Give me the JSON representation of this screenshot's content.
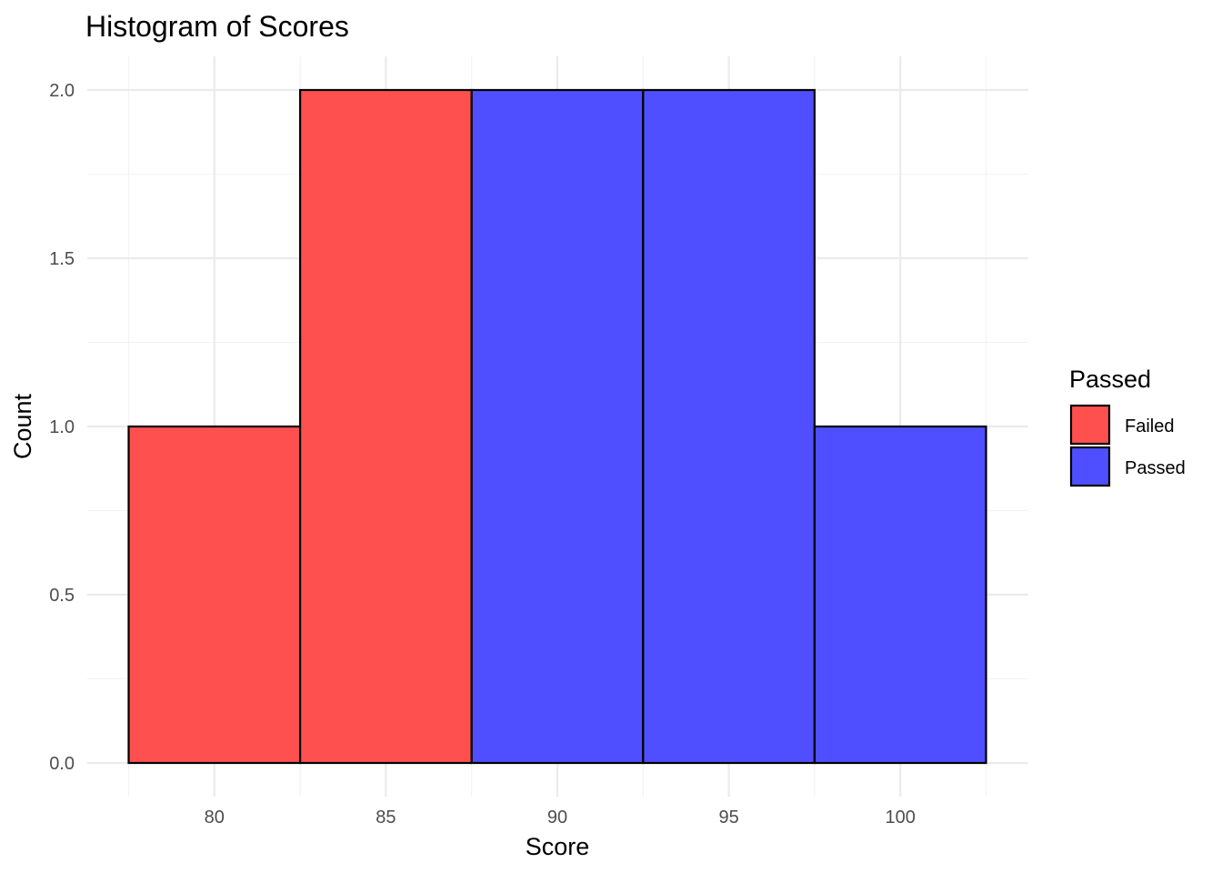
{
  "chart_data": {
    "type": "bar",
    "title": "Histogram of Scores",
    "xlabel": "Score",
    "ylabel": "Count",
    "x_ticks": [
      "80",
      "85",
      "90",
      "95",
      "100"
    ],
    "y_ticks": [
      "0.0",
      "0.5",
      "1.0",
      "1.5",
      "2.0"
    ],
    "xlim": [
      77.5,
      102.5
    ],
    "ylim": [
      0,
      2
    ],
    "bins": [
      {
        "start": 77.5,
        "end": 82.5,
        "count": 1,
        "group": "Failed"
      },
      {
        "start": 82.5,
        "end": 87.5,
        "count": 2,
        "group": "Failed"
      },
      {
        "start": 87.5,
        "end": 92.5,
        "count": 2,
        "group": "Passed"
      },
      {
        "start": 92.5,
        "end": 97.5,
        "count": 2,
        "group": "Passed"
      },
      {
        "start": 97.5,
        "end": 102.5,
        "count": 1,
        "group": "Passed"
      }
    ],
    "legend": {
      "title": "Passed",
      "position": "right",
      "entries": [
        {
          "label": "Failed",
          "color": "#ff5050"
        },
        {
          "label": "Passed",
          "color": "#4f4fff"
        }
      ]
    },
    "grid": true
  }
}
